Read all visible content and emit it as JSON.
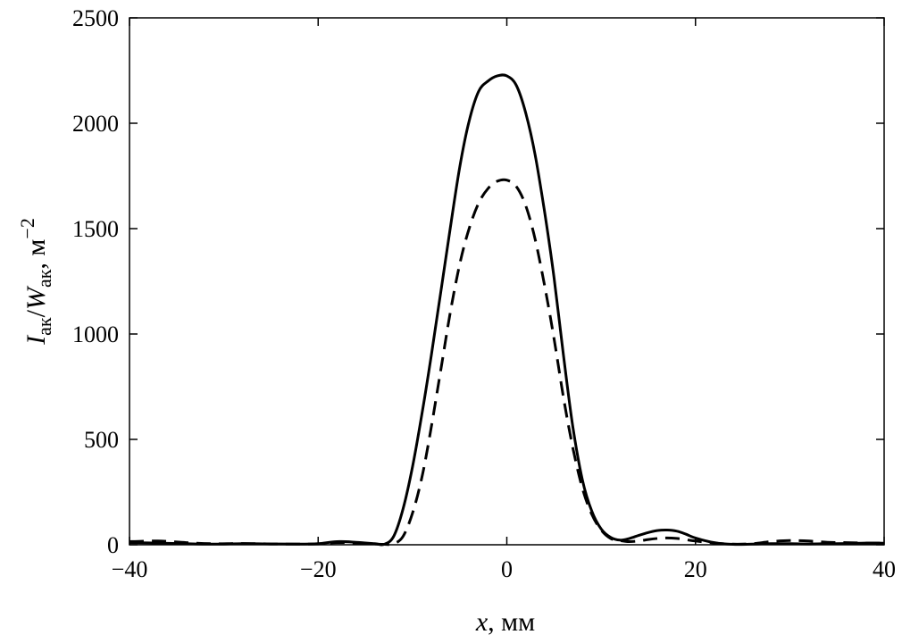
{
  "chart_data": {
    "type": "line",
    "xlabel": {
      "var": "x",
      "rest": ", мм"
    },
    "ylabel": {
      "I": "I",
      "I_sub": "ак",
      "slash": "/",
      "W": "W",
      "W_sub": "ак",
      "unit": ", м",
      "unit_sup": "−2"
    },
    "xlim": [
      -40,
      40
    ],
    "ylim": [
      0,
      2500
    ],
    "xticks": [
      -40,
      -20,
      0,
      20,
      40
    ],
    "xtick_labels": [
      "−40",
      "−20",
      "0",
      "20",
      "40"
    ],
    "yticks": [
      0,
      500,
      1000,
      1500,
      2000,
      2500
    ],
    "ytick_labels": [
      "0",
      "500",
      "1000",
      "1500",
      "2000",
      "2500"
    ],
    "grid": false,
    "series": [
      {
        "style": "solid",
        "color": "#000000",
        "x": [
          -40,
          -37,
          -34,
          -31,
          -28,
          -25,
          -22,
          -20,
          -18,
          -16,
          -14,
          -13,
          -12,
          -11,
          -10,
          -9,
          -8,
          -7,
          -6,
          -5,
          -4,
          -3,
          -2,
          -1,
          0,
          1,
          2,
          3,
          4,
          5,
          6,
          7,
          8,
          9,
          10,
          11,
          12,
          13,
          14,
          15,
          16,
          17,
          18,
          19,
          20,
          22,
          24,
          26,
          28,
          30,
          32,
          34,
          36,
          38,
          40
        ],
        "y": [
          10,
          8,
          5,
          3,
          5,
          4,
          3,
          5,
          15,
          12,
          5,
          2,
          40,
          170,
          370,
          620,
          900,
          1200,
          1500,
          1790,
          2010,
          2150,
          2200,
          2225,
          2225,
          2180,
          2050,
          1850,
          1580,
          1270,
          900,
          560,
          310,
          160,
          75,
          35,
          22,
          30,
          45,
          58,
          68,
          70,
          65,
          50,
          32,
          10,
          2,
          3,
          5,
          5,
          4,
          5,
          6,
          8,
          7
        ]
      },
      {
        "style": "dashed",
        "color": "#000000",
        "x": [
          -40,
          -37,
          -34,
          -31,
          -28,
          -25,
          -22,
          -20,
          -18,
          -16,
          -14,
          -13,
          -12,
          -11,
          -10,
          -9,
          -8,
          -7,
          -6,
          -5,
          -4,
          -3,
          -2,
          -1,
          0,
          1,
          2,
          3,
          4,
          5,
          6,
          7,
          8,
          9,
          10,
          11,
          12,
          13,
          14,
          15,
          16,
          17,
          18,
          19,
          20,
          22,
          24,
          26,
          28,
          30,
          32,
          34,
          36,
          38,
          40
        ],
        "y": [
          15,
          18,
          10,
          5,
          6,
          4,
          3,
          4,
          10,
          8,
          4,
          2,
          5,
          40,
          150,
          320,
          560,
          830,
          1100,
          1330,
          1500,
          1620,
          1690,
          1725,
          1730,
          1700,
          1610,
          1450,
          1230,
          980,
          700,
          460,
          270,
          145,
          70,
          30,
          20,
          15,
          18,
          25,
          30,
          32,
          30,
          24,
          18,
          8,
          3,
          5,
          15,
          20,
          18,
          12,
          10,
          8,
          8
        ]
      }
    ]
  }
}
